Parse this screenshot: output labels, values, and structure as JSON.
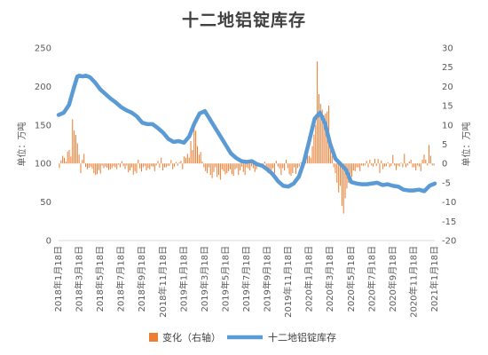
{
  "chart_data": {
    "type": "bar+line",
    "title": "十二地铝锭库存",
    "left_axis": {
      "label": "单位：万吨",
      "ylim": [
        0,
        250
      ],
      "ticks": [
        "0",
        "50",
        "100",
        "150",
        "200",
        "250"
      ]
    },
    "right_axis": {
      "label": "单位：万吨",
      "ylim": [
        -20,
        30
      ],
      "ticks": [
        "-20",
        "-15",
        "-10",
        "-5",
        "0",
        "5",
        "10",
        "15",
        "20",
        "25",
        "30"
      ]
    },
    "x_labels": [
      "2018年1月18日",
      "2018年3月18日",
      "2018年5月18日",
      "2018年7月18日",
      "2018年9月18日",
      "2018年11月18日",
      "2019年1月18日",
      "2019年3月18日",
      "2019年5月18日",
      "2019年7月18日",
      "2019年9月18日",
      "2019年11月18日",
      "2020年1月18日",
      "2020年3月18日",
      "2020年5月18日",
      "2020年7月18日",
      "2020年9月18日",
      "2020年11月18日",
      "2021年1月18日"
    ],
    "x_range": [
      "2018年1月18日",
      "2021年1月18日"
    ],
    "legend": [
      {
        "name": "变化（右轴）",
        "color": "#ED7D31",
        "type": "bar"
      },
      {
        "name": "十二地铝锭库存",
        "color": "#5B9BD5",
        "type": "line"
      }
    ],
    "inventory_line": {
      "name": "十二地铝锭库存",
      "axis": "left",
      "color": "#5B9BD5",
      "month_offsets": [
        0,
        0.5,
        1.0,
        1.5,
        1.8,
        2.0,
        2.3,
        2.6,
        3.0,
        3.5,
        4.0,
        4.5,
        5.0,
        5.5,
        6.0,
        6.5,
        7.0,
        7.5,
        8.0,
        8.5,
        9.0,
        9.5,
        10.0,
        10.5,
        11.0,
        11.5,
        12.0,
        12.5,
        13.0,
        13.5,
        14.0,
        14.5,
        15.0,
        15.5,
        16.0,
        16.5,
        17.0,
        17.5,
        18.0,
        18.5,
        19.0,
        19.5,
        20.0,
        20.5,
        21.0,
        21.5,
        22.0,
        22.5,
        23.0,
        23.5,
        24.0,
        24.5,
        25.0,
        25.5,
        26.0,
        26.5,
        27.0,
        27.5,
        28.0,
        28.5,
        29.0,
        29.5,
        30.0,
        30.5,
        31.0,
        31.5,
        32.0,
        32.5,
        33.0,
        33.5,
        34.0,
        34.5,
        35.0,
        35.5,
        36.0
      ],
      "values": [
        163,
        166,
        176,
        200,
        213,
        214,
        213,
        214,
        212,
        205,
        196,
        190,
        184,
        179,
        173,
        169,
        166,
        161,
        153,
        151,
        151,
        146,
        140,
        132,
        128,
        129,
        127,
        135,
        152,
        165,
        168,
        157,
        146,
        135,
        124,
        113,
        107,
        103,
        102,
        103,
        99,
        97,
        92,
        86,
        77,
        71,
        70,
        74,
        83,
        103,
        130,
        158,
        166,
        152,
        125,
        106,
        99,
        92,
        76,
        74,
        73,
        73,
        74,
        75,
        72,
        73,
        71,
        70,
        66,
        65,
        65,
        66,
        64,
        71,
        74
      ]
    },
    "change_bars": {
      "name": "变化（右轴）",
      "axis": "right",
      "color": "#ED7D31",
      "note": "weekly changes in 万吨",
      "values": [
        -1.2,
        0.8,
        2.0,
        1.5,
        0.5,
        3.1,
        3.5,
        1.8,
        11.5,
        8.6,
        7.4,
        5.2,
        2.3,
        -2.5,
        1.0,
        2.5,
        -0.9,
        -1.5,
        -1.1,
        -0.8,
        -1.3,
        -2.5,
        -3.0,
        -2.8,
        -1.7,
        -2.6,
        -0.5,
        -1.2,
        -0.8,
        -1.1,
        -1.7,
        -1.5,
        -1.2,
        -0.7,
        -1.0,
        -1.5,
        -0.3,
        -1.0,
        0.6,
        -0.7,
        -1.4,
        -0.5,
        -2.3,
        -1.8,
        -1.0,
        -2.9,
        -2.0,
        -2.5,
        1.0,
        -1.3,
        -2.1,
        -1.0,
        -0.6,
        -1.8,
        -1.2,
        -1.5,
        -0.7,
        -0.8,
        -2.0,
        -0.5,
        0.7,
        -1.1,
        1.5,
        -1.8,
        -1.0,
        -1.0,
        -0.6,
        -0.6,
        0.9,
        -1.5,
        -0.8,
        0.4,
        -0.6,
        0.3,
        0.7,
        -1.5,
        1.8,
        1.5,
        2.5,
        1.5,
        5.8,
        3.5,
        10.0,
        8.5,
        4.5,
        2.3,
        3.0,
        0.5,
        -1.0,
        -2.0,
        -2.5,
        -1.0,
        -3.0,
        -3.8,
        -2.2,
        -1.0,
        -3.5,
        -3.0,
        -4.2,
        -1.5,
        -2.0,
        -2.8,
        -2.5,
        -2.0,
        -1.5,
        -2.8,
        -3.2,
        -1.5,
        -1.2,
        -3.0,
        -1.8,
        -0.8,
        -2.2,
        -3.0,
        -1.0,
        -1.3,
        -1.8,
        -0.7,
        -1.2,
        -2.2,
        -1.5,
        -0.6,
        -0.5,
        -0.5,
        -1.2,
        0.5,
        -0.8,
        -2.5,
        -2.5,
        -1.8,
        -1.2,
        -2.5,
        0.7,
        -0.8,
        -1.3,
        -3.0,
        -1.2,
        -1.8,
        1.0,
        -1.2,
        -2.8,
        -3.2,
        -2.5,
        -1.0,
        -2.7,
        -1.2,
        -0.8,
        0.3,
        -1.0,
        -0.5,
        3.3,
        3.5,
        2.0,
        1.5,
        4.5,
        7.5,
        10.0,
        26.5,
        18.0,
        15.5,
        14.0,
        12.5,
        13.0,
        13.5,
        15.0,
        5.0,
        2.0,
        -1.0,
        -2.5,
        -5.0,
        -7.5,
        -5.8,
        -11.0,
        -13.0,
        -9.0,
        -6.5,
        -5.0,
        -4.5,
        -3.5,
        -1.8,
        -2.0,
        -1.0,
        -1.0,
        -2.0,
        -0.5,
        -0.6,
        -0.5,
        0.7,
        -1.0,
        1.0,
        -0.5,
        -0.8,
        1.2,
        -0.6,
        1.2,
        -2.5,
        0.8,
        -1.5,
        -0.8,
        -0.7,
        0.3,
        -1.0,
        -0.6,
        2.2,
        -0.5,
        -1.7,
        -0.5,
        -0.8,
        0.2,
        -1.0,
        2.5,
        -1.0,
        -0.5,
        0.5,
        1.0,
        -1.0,
        -1.0,
        -1.8,
        -0.5,
        -0.8,
        -2.0,
        1.0,
        2.3,
        1.0,
        -0.5,
        4.8,
        2.0,
        -0.5,
        -0.5
      ]
    }
  }
}
